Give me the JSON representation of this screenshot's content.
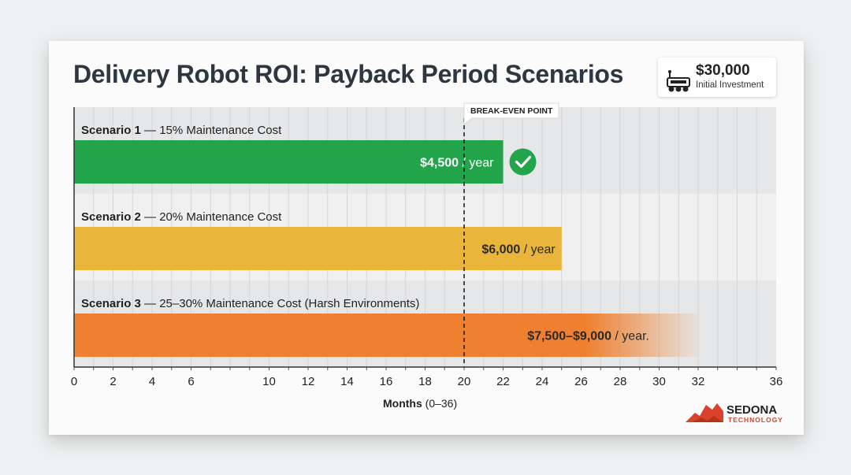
{
  "title": "Delivery Robot ROI: Payback Period Scenarios",
  "investment": {
    "amount": "$30,000",
    "label": "Initial Investment",
    "icon": "delivery-robot-icon"
  },
  "chart_data": {
    "type": "bar",
    "orientation": "horizontal",
    "xlim": [
      0,
      36
    ],
    "xticks": [
      0,
      2,
      4,
      6,
      10,
      12,
      14,
      16,
      18,
      20,
      22,
      24,
      26,
      28,
      30,
      32,
      36
    ],
    "x_label_bold": "Months",
    "x_label_rest": " (0–36)",
    "break_even": {
      "label": "BREAK-EVEN POINT",
      "x": 20
    },
    "series": [
      {
        "label_bold": "Scenario 1",
        "label_rest": " — 15% Maintenance Cost",
        "value": 22,
        "value_bold": "$4,500",
        "value_rest": " / year",
        "color": "#22a54a",
        "check": true,
        "fade": false
      },
      {
        "label_bold": "Scenario 2",
        "label_rest": " — 20% Maintenance Cost",
        "value": 25,
        "value_bold": "$6,000",
        "value_rest": " / year",
        "color": "#e9b53a",
        "check": false,
        "fade": false
      },
      {
        "label_bold": "Scenario 3",
        "label_rest": " — 25–30% Maintenance Cost (Harsh Environments)",
        "value": 32,
        "value_bold": "$7,500–$9,000",
        "value_rest": " / year.",
        "color": "#ef8030",
        "check": false,
        "fade": true
      }
    ]
  },
  "logo": {
    "name": "SEDONA",
    "sub": "TECHNOLOGY",
    "color": "#d9432b"
  }
}
